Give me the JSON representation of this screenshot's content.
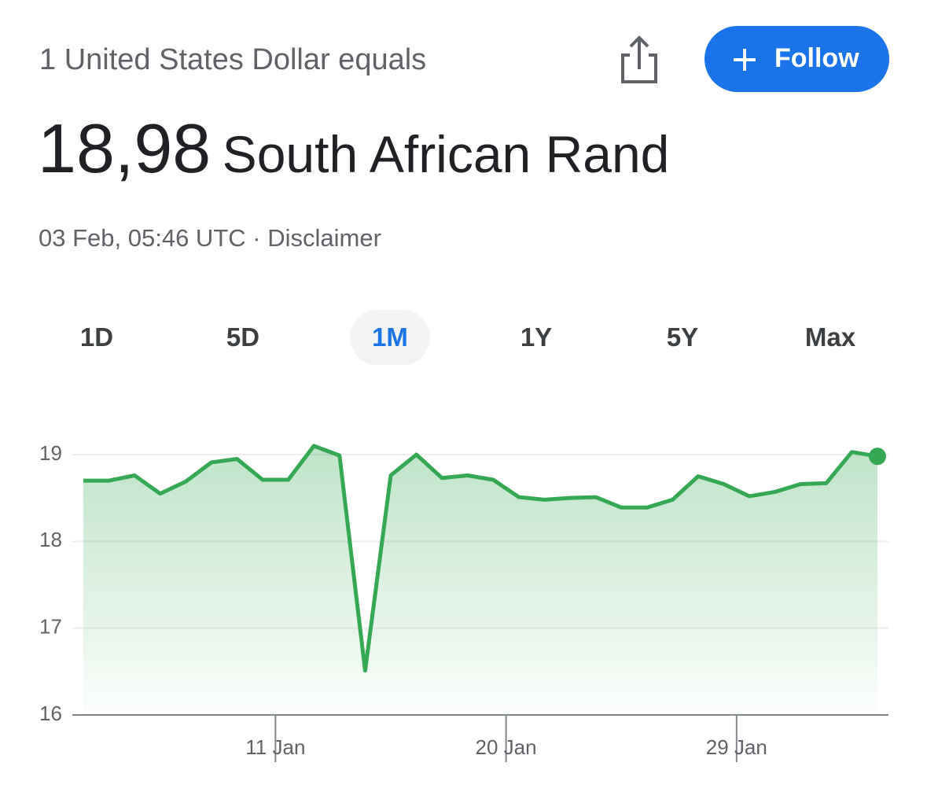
{
  "header": {
    "base": "1 United States Dollar equals",
    "rate": "18,98",
    "currency": "South African Rand",
    "timestamp": "03 Feb, 05:46 UTC",
    "separator": "·",
    "disclaimer": "Disclaimer",
    "follow": "Follow"
  },
  "tabs": {
    "items": [
      "1D",
      "5D",
      "1M",
      "1Y",
      "5Y",
      "Max"
    ],
    "selected": 2
  },
  "chart_data": {
    "type": "line",
    "color": "#34a853",
    "x": [
      3.5,
      4.5,
      5.5,
      6.5,
      7.5,
      8.5,
      9.5,
      10.5,
      11.5,
      12.5,
      13.5,
      14.5,
      15.5,
      16.5,
      17.5,
      18.5,
      19.5,
      20.5,
      21.5,
      22.5,
      23.5,
      24.5,
      25.5,
      26.5,
      27.5,
      28.5,
      29.5,
      30.5,
      31.5,
      32.5,
      33.5,
      34.5
    ],
    "values": [
      18.7,
      18.7,
      18.76,
      18.55,
      18.69,
      18.91,
      18.95,
      18.71,
      18.71,
      19.1,
      18.99,
      16.51,
      18.76,
      19.0,
      18.73,
      18.76,
      18.71,
      18.51,
      18.48,
      18.5,
      18.51,
      18.39,
      18.39,
      18.48,
      18.75,
      18.66,
      18.52,
      18.57,
      18.66,
      18.67,
      19.03,
      18.98
    ],
    "xlim": [
      3.5,
      34.5
    ],
    "xticks": [
      {
        "value": 11,
        "label": "11 Jan"
      },
      {
        "value": 20,
        "label": "20 Jan"
      },
      {
        "value": 29,
        "label": "29 Jan"
      }
    ],
    "ylim": [
      16,
      19.25
    ],
    "yticks": [
      16,
      17,
      18,
      19
    ],
    "grid": true
  }
}
